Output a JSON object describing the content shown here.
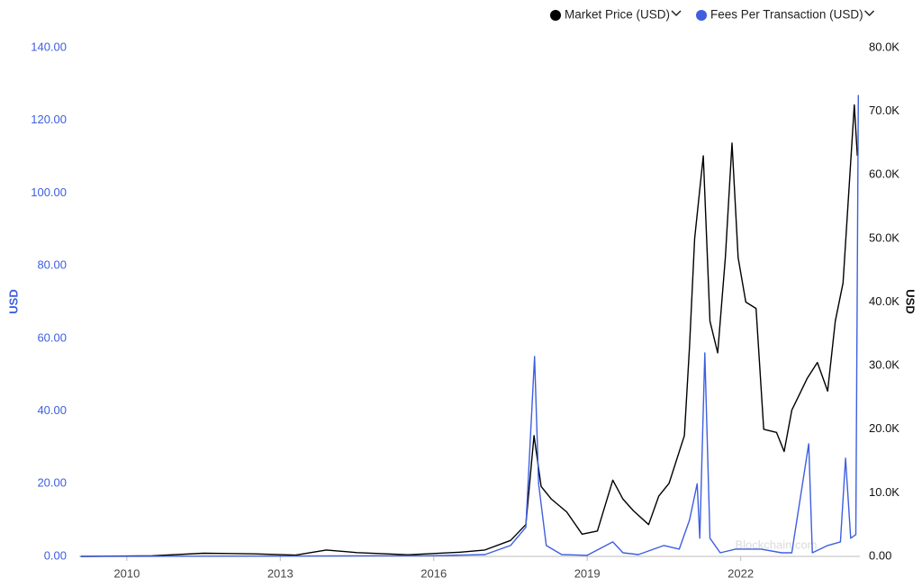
{
  "chart_data": {
    "type": "line",
    "legend": "top-right",
    "watermark": "Blockchain.com",
    "y_label": "USD",
    "y2_label": "USD",
    "xlim": [
      2009.07,
      2024.33
    ],
    "xticks": [
      2010,
      2013,
      2016,
      2019,
      2022
    ],
    "ylim": [
      0,
      140
    ],
    "yticks": [
      {
        "value": 0,
        "label": "0.00"
      },
      {
        "value": 20,
        "label": "20.00"
      },
      {
        "value": 40,
        "label": "40.00"
      },
      {
        "value": 60,
        "label": "60.00"
      },
      {
        "value": 80,
        "label": "80.00"
      },
      {
        "value": 100,
        "label": "100.00"
      },
      {
        "value": 120,
        "label": "120.00"
      },
      {
        "value": 140,
        "label": "140.00"
      }
    ],
    "y2lim": [
      0,
      80000
    ],
    "y2ticks": [
      {
        "value": 0,
        "label": "0.00"
      },
      {
        "value": 10000,
        "label": "10.0K"
      },
      {
        "value": 20000,
        "label": "20.0K"
      },
      {
        "value": 30000,
        "label": "30.0K"
      },
      {
        "value": 40000,
        "label": "40.0K"
      },
      {
        "value": 50000,
        "label": "50.0K"
      },
      {
        "value": 60000,
        "label": "60.0K"
      },
      {
        "value": 70000,
        "label": "70.0K"
      },
      {
        "value": 80000,
        "label": "80.0K"
      }
    ],
    "series": [
      {
        "name": "Market Price (USD)",
        "color": "#000000",
        "axis": "y2",
        "x": [
          2009.1,
          2010.5,
          2011.5,
          2012.5,
          2013.3,
          2013.9,
          2014.5,
          2015.5,
          2016.5,
          2017.0,
          2017.5,
          2017.8,
          2017.96,
          2018.1,
          2018.3,
          2018.6,
          2018.9,
          2019.2,
          2019.5,
          2019.7,
          2019.9,
          2020.2,
          2020.4,
          2020.6,
          2020.9,
          2021.0,
          2021.1,
          2021.27,
          2021.4,
          2021.55,
          2021.7,
          2021.83,
          2021.95,
          2022.1,
          2022.3,
          2022.45,
          2022.7,
          2022.85,
          2023.0,
          2023.3,
          2023.5,
          2023.7,
          2023.85,
          2024.0,
          2024.15,
          2024.22,
          2024.28
        ],
        "values": [
          0,
          100,
          500,
          400,
          200,
          1000,
          600,
          250,
          650,
          1000,
          2500,
          5000,
          19000,
          11000,
          9000,
          7000,
          3500,
          4000,
          12000,
          9000,
          7200,
          5000,
          9500,
          11500,
          19000,
          33000,
          50000,
          63000,
          37000,
          32000,
          47000,
          65000,
          47000,
          40000,
          39000,
          20000,
          19500,
          16500,
          23000,
          28000,
          30500,
          26000,
          37000,
          43000,
          62000,
          71000,
          63000
        ]
      },
      {
        "name": "Fees Per Transaction (USD)",
        "color": "#3d5fe0",
        "axis": "y",
        "x": [
          2009.1,
          2013.5,
          2016.0,
          2017.0,
          2017.5,
          2017.8,
          2017.97,
          2018.05,
          2018.2,
          2018.5,
          2019.0,
          2019.5,
          2019.7,
          2020.0,
          2020.5,
          2020.8,
          2021.0,
          2021.15,
          2021.2,
          2021.3,
          2021.4,
          2021.6,
          2021.9,
          2022.4,
          2022.8,
          2023.0,
          2023.33,
          2023.4,
          2023.7,
          2023.95,
          2024.05,
          2024.15,
          2024.25,
          2024.3
        ],
        "values": [
          0,
          0.1,
          0.2,
          0.5,
          3,
          8,
          55,
          20,
          3,
          0.5,
          0.3,
          4,
          1,
          0.5,
          3,
          2,
          10,
          20,
          5,
          56,
          5,
          1,
          2,
          2,
          1,
          1,
          31,
          1,
          3,
          4,
          27,
          5,
          6,
          127
        ]
      }
    ]
  }
}
